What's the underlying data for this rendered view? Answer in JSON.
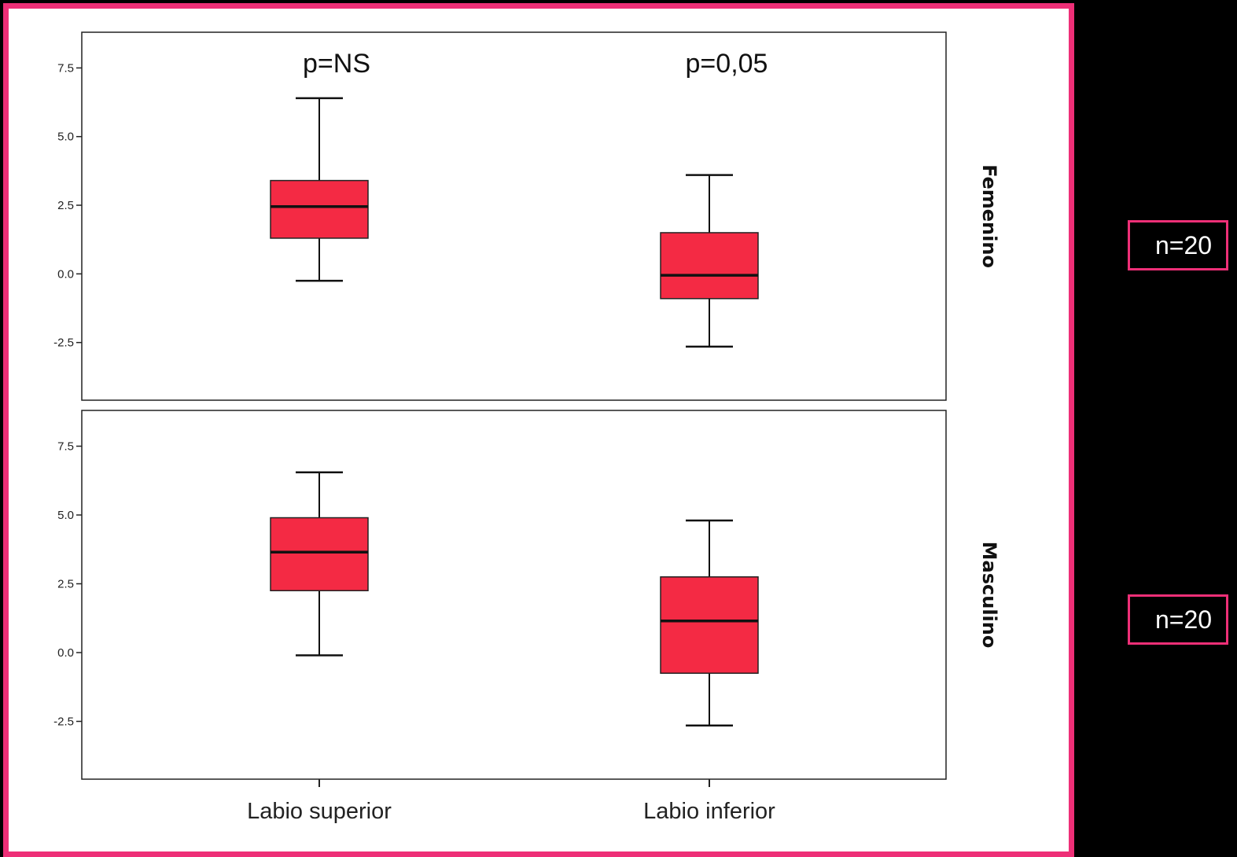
{
  "chart_data": {
    "type": "boxplot",
    "categories": [
      "Labio superior",
      "Labio inferior"
    ],
    "ylim": [
      -4.6,
      8.8
    ],
    "yticks": [
      7.5,
      5.0,
      2.5,
      0.0,
      -2.5
    ],
    "ytick_labels": [
      "7.5",
      "5.0",
      "2.5",
      "0.0",
      "-2.5"
    ],
    "box_color": "#f42a44",
    "frame_color": "#ee2f77",
    "panels": [
      {
        "facet": "Femenino",
        "n_label": "n=20",
        "annotations": [
          "p=NS",
          "p=0,05"
        ],
        "boxes": [
          {
            "category": "Labio superior",
            "min": -0.25,
            "q1": 1.3,
            "median": 2.45,
            "q3": 3.4,
            "max": 6.4
          },
          {
            "category": "Labio inferior",
            "min": -2.65,
            "q1": -0.9,
            "median": -0.05,
            "q3": 1.5,
            "max": 3.6
          }
        ]
      },
      {
        "facet": "Masculino",
        "n_label": "n=20",
        "annotations": [],
        "boxes": [
          {
            "category": "Labio superior",
            "min": -0.1,
            "q1": 2.25,
            "median": 3.65,
            "q3": 4.9,
            "max": 6.55
          },
          {
            "category": "Labio inferior",
            "min": -2.65,
            "q1": -0.75,
            "median": 1.15,
            "q3": 2.75,
            "max": 4.8
          }
        ]
      }
    ]
  }
}
